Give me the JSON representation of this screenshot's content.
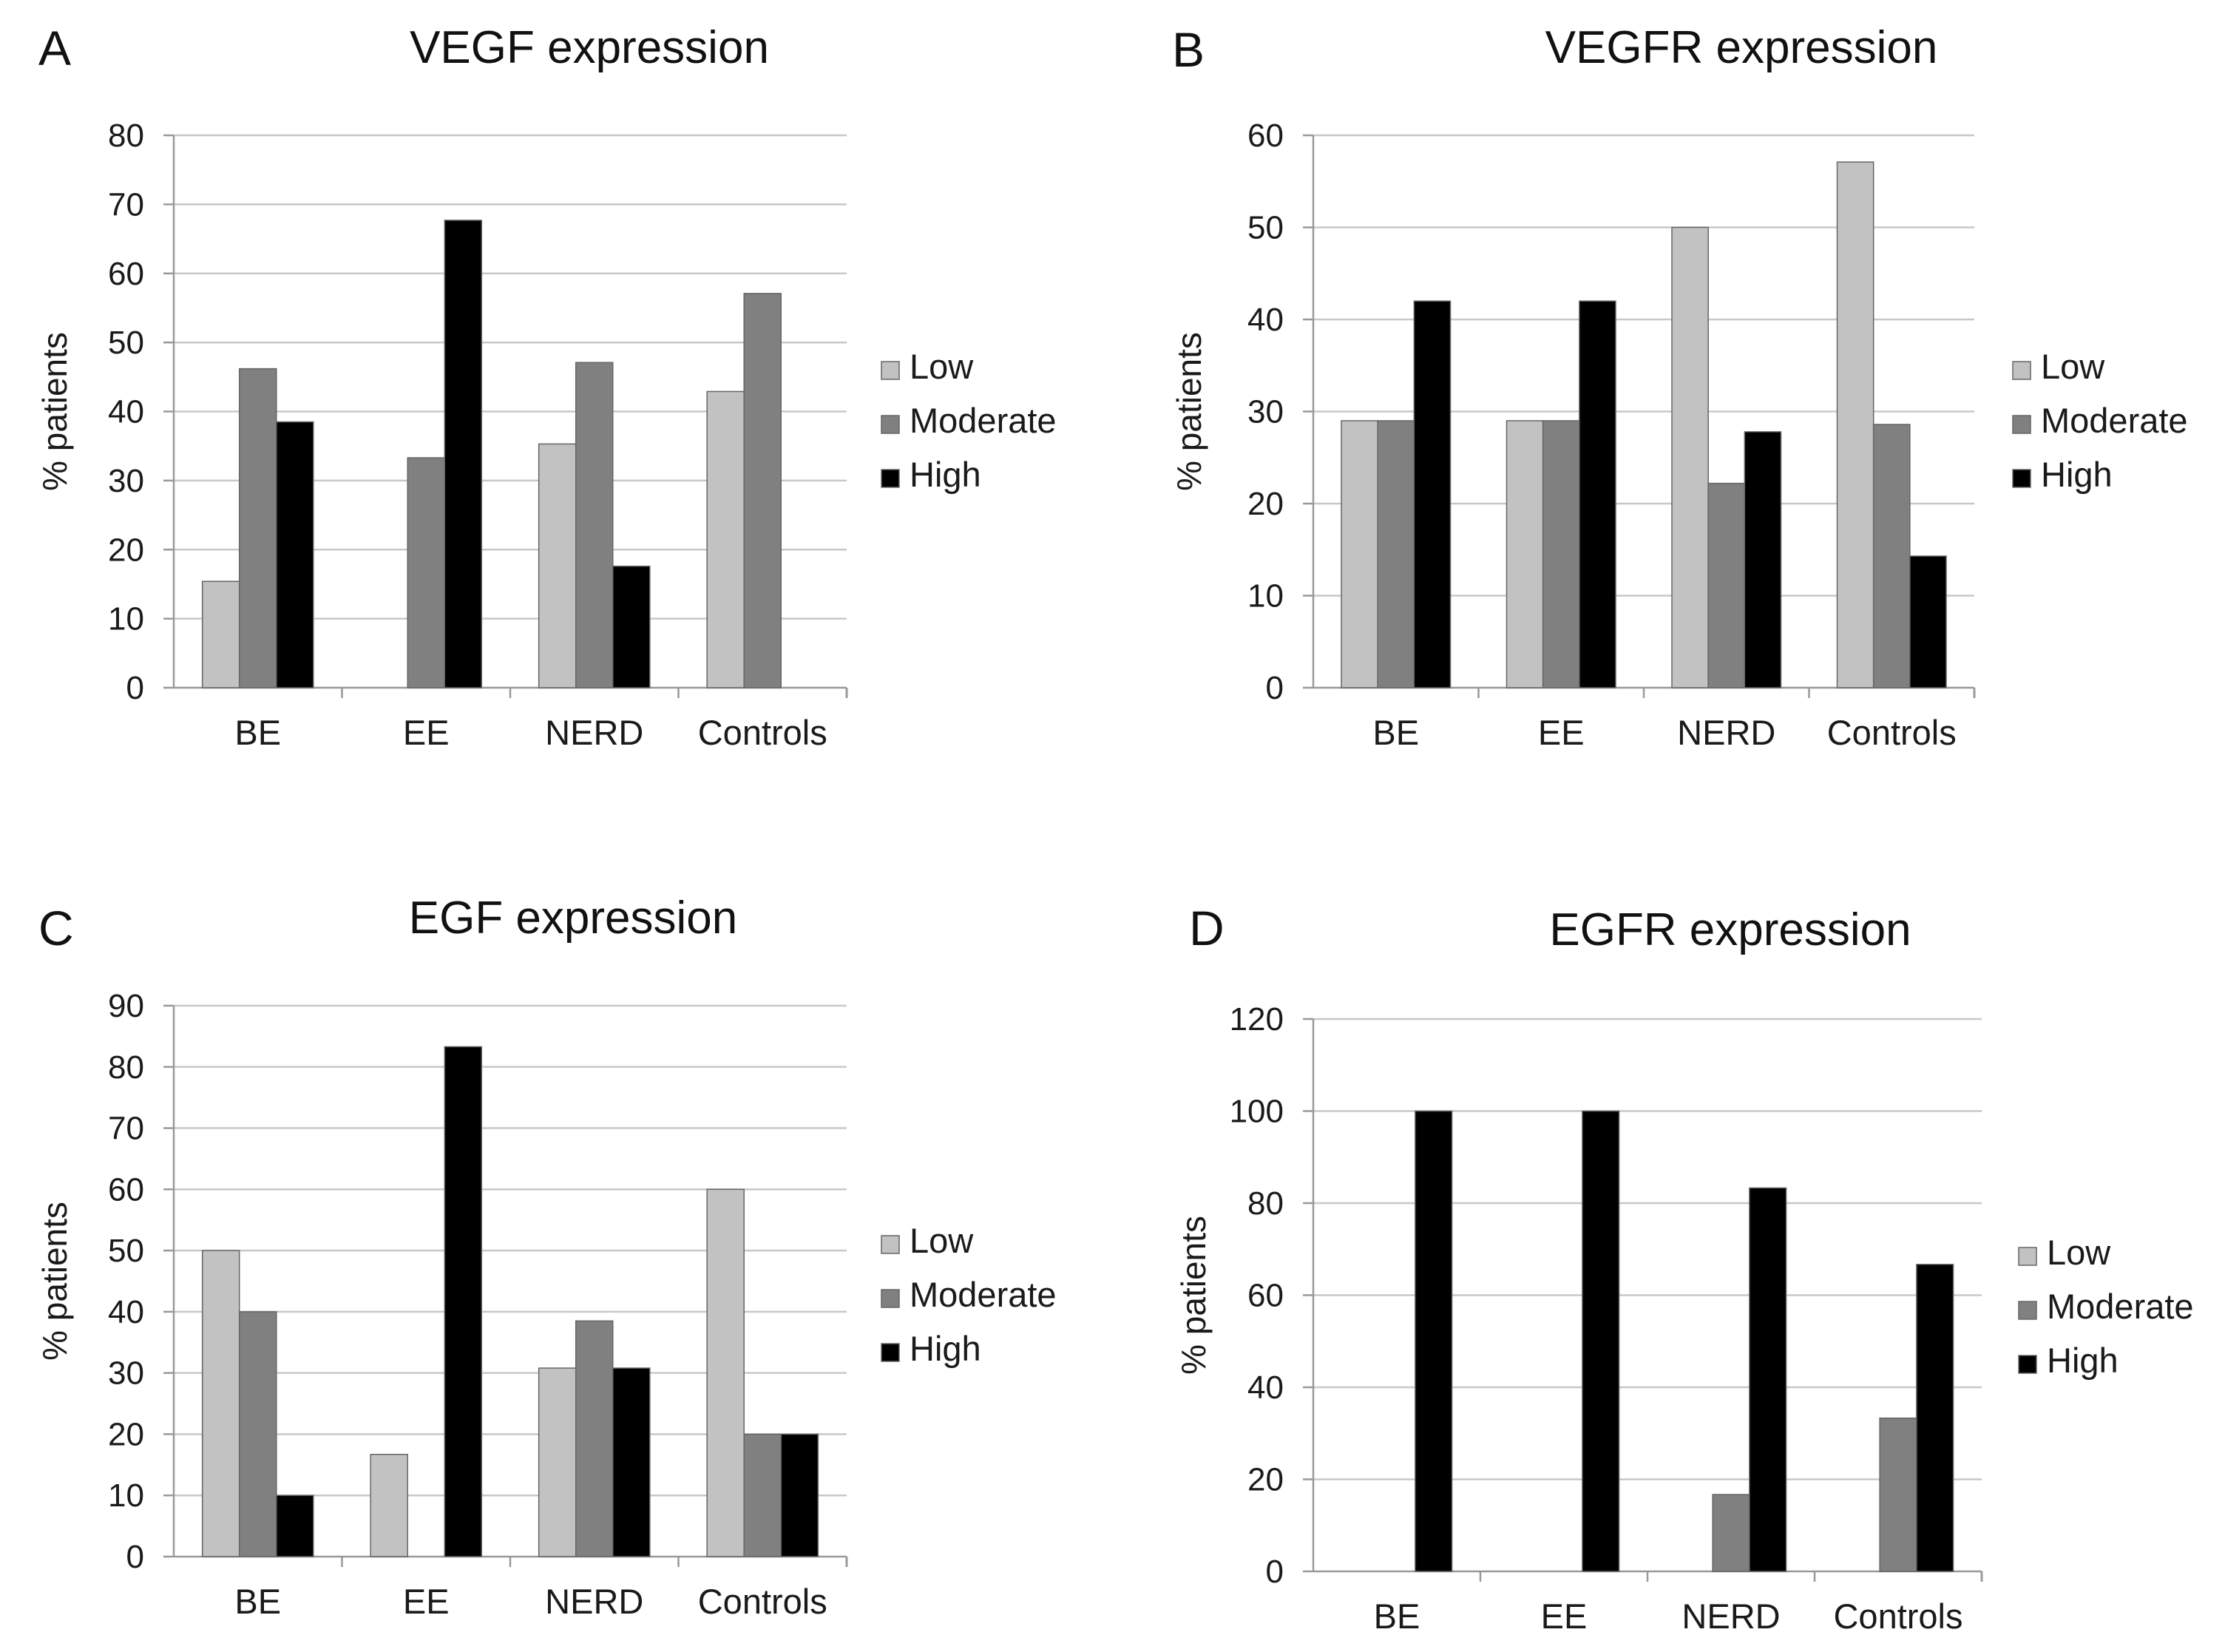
{
  "legend": [
    "Low",
    "Moderate",
    "High"
  ],
  "series_colors": {
    "Low": "#c2c2c2",
    "Moderate": "#808080",
    "High": "#000000"
  },
  "chart_data": [
    {
      "panel": "A",
      "type": "bar",
      "title": "VEGF expression",
      "ylabel": "% patients",
      "ylim": [
        0,
        80
      ],
      "ytick_step": 10,
      "grid": true,
      "legend_position": "right",
      "categories": [
        "BE",
        "EE",
        "NERD",
        "Controls"
      ],
      "series": [
        {
          "name": "Low",
          "values": [
            15.4,
            0,
            35.3,
            42.9
          ]
        },
        {
          "name": "Moderate",
          "values": [
            46.2,
            33.3,
            47.1,
            57.1
          ]
        },
        {
          "name": "High",
          "values": [
            38.5,
            67.7,
            17.6,
            0
          ]
        }
      ]
    },
    {
      "panel": "B",
      "type": "bar",
      "title": "VEGFR expression",
      "ylabel": "% patients",
      "ylim": [
        0,
        60
      ],
      "ytick_step": 10,
      "grid": true,
      "legend_position": "right",
      "categories": [
        "BE",
        "EE",
        "NERD",
        "Controls"
      ],
      "series": [
        {
          "name": "Low",
          "values": [
            29,
            29,
            50,
            57.1
          ]
        },
        {
          "name": "Moderate",
          "values": [
            29,
            29,
            22.2,
            28.6
          ]
        },
        {
          "name": "High",
          "values": [
            42,
            42,
            27.8,
            14.3
          ]
        }
      ]
    },
    {
      "panel": "C",
      "type": "bar",
      "title": "EGF expression",
      "ylabel": "% patients",
      "ylim": [
        0,
        90
      ],
      "ytick_step": 10,
      "grid": true,
      "legend_position": "right",
      "categories": [
        "BE",
        "EE",
        "NERD",
        "Controls"
      ],
      "series": [
        {
          "name": "Low",
          "values": [
            50,
            16.7,
            30.8,
            60
          ]
        },
        {
          "name": "Moderate",
          "values": [
            40,
            0,
            38.5,
            20
          ]
        },
        {
          "name": "High",
          "values": [
            10,
            83.3,
            30.8,
            20
          ]
        }
      ]
    },
    {
      "panel": "D",
      "type": "bar",
      "title": "EGFR expression",
      "ylabel": "% patients",
      "ylim": [
        0,
        120
      ],
      "ytick_step": 20,
      "grid": true,
      "legend_position": "right",
      "categories": [
        "BE",
        "EE",
        "NERD",
        "Controls"
      ],
      "series": [
        {
          "name": "Low",
          "values": [
            0,
            0,
            0,
            0
          ]
        },
        {
          "name": "Moderate",
          "values": [
            0,
            0,
            16.7,
            33.3
          ]
        },
        {
          "name": "High",
          "values": [
            100,
            100,
            83.3,
            66.7
          ]
        }
      ]
    }
  ]
}
